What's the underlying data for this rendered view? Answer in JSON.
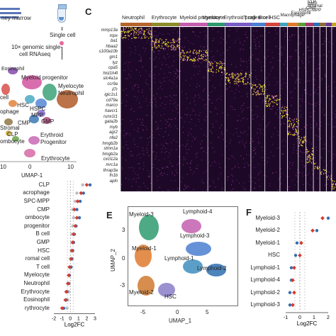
{
  "panelA": {
    "text_top": "ney marrow",
    "single_cell": "Single cell",
    "protocol_line1": "10× genomic single-",
    "protocol_line2": "cell RNAseq",
    "cluster_labels": [
      "Eosinophil",
      "Myeloid progenitor",
      "Myelocyte",
      "Neutrophil",
      "HSC",
      "cell",
      "ophage",
      "HSPC",
      "MPP",
      "GMP",
      "CMP",
      "Stromal",
      "CLP",
      "ombocyte",
      "Erythroid",
      "Progenitor",
      "Erythrocyte"
    ],
    "x_ticks": [
      "10",
      "0",
      "10"
    ],
    "x_label": "UMAP-1"
  },
  "panelC": {
    "label": "C",
    "clusters": [
      {
        "name": "Neutrophil",
        "color": "#b5652a"
      },
      {
        "name": "Erythrocyte",
        "color": "#8c8c2a"
      },
      {
        "name": "Myeloid progenitor",
        "color": "#c45fb0"
      },
      {
        "name": "Myelocyte",
        "color": "#2d9a6e"
      },
      {
        "name": "Erythroid progenitor",
        "color": "#7a5cc8"
      },
      {
        "name": "T cell",
        "color": "#4b7fd1"
      },
      {
        "name": "B cell",
        "color": "#d4453f"
      },
      {
        "name": "HSC",
        "color": "#3fa4c0"
      },
      {
        "name": "Macrophage",
        "color": "#e07b2e"
      },
      {
        "name": "Eosinophil",
        "color": "#5c9e3a"
      },
      {
        "name": "HSPC-MPP",
        "color": "#a83a70"
      },
      {
        "name": "CMP",
        "color": "#2f6fb0"
      },
      {
        "name": "Stromal",
        "color": "#8a6d3b"
      },
      {
        "name": "GMP",
        "color": "#6a3a9a"
      },
      {
        "name": "CLP",
        "color": "#c4a42a"
      }
    ],
    "genes": [
      "mmp13a",
      "mpx",
      "ba1",
      "hbaa2",
      "s100a10b",
      "gm1",
      "lyz",
      "cpa5",
      "hist1h4l",
      "slc4a1a",
      "ccr9a",
      "il7r",
      "igic1s1",
      "cd79a",
      "marco",
      "havcr1",
      "runx1t1",
      "gata2b",
      "myb",
      "agr2",
      "nfe2",
      "hmgb2b",
      "stmn1a",
      "hmgb2a",
      "cxcl12a",
      "mrc1a",
      "thrap3a",
      "fn1b",
      "apln"
    ]
  },
  "panelD": {
    "rows": [
      "CLP",
      "acrophage",
      "SPC-MPP",
      "CMP",
      "ombocyte",
      "progenitor",
      "B cell",
      "GMP",
      "HSC",
      "romal cell",
      "T cell",
      "Myelocyte",
      "Neutrophil",
      "Erythrocyte",
      "Eosinophil",
      "rythrocyte"
    ],
    "points": [
      {
        "red": 2.0,
        "blue": 2.4,
        "grey": 1.5
      },
      {
        "red": 1.3,
        "blue": 1.6,
        "grey": 0.8
      },
      {
        "red": 0.9,
        "blue": 1.2,
        "grey": 0.6
      },
      {
        "red": 0.5,
        "blue": 0.8,
        "grey": 0.3
      },
      {
        "red": 0.8,
        "blue": 1.1,
        "grey": 0.4
      },
      {
        "red": 0.6,
        "blue": 0.7,
        "grey": 0.3
      },
      {
        "red": 0.4,
        "blue": 0.5,
        "grey": 0.2
      },
      {
        "red": 0.3,
        "blue": 0.4,
        "grey": 0.2
      },
      {
        "red": 0.2,
        "blue": 0.3,
        "grey": 0.1
      },
      {
        "red": 0.1,
        "blue": 0.2,
        "grey": 0.0
      },
      {
        "red": -0.1,
        "blue": 0.1,
        "grey": 0.0
      },
      {
        "red": -0.2,
        "blue": -0.1,
        "grey": -0.1
      },
      {
        "red": -0.3,
        "blue": -0.2,
        "grey": -0.1
      },
      {
        "red": -0.5,
        "blue": -0.4,
        "grey": -0.2
      },
      {
        "red": -0.6,
        "blue": -0.5,
        "grey": -0.3
      },
      {
        "red": -1.0,
        "blue": -0.8,
        "grey": -0.4
      }
    ],
    "x_ticks": [
      "-2",
      "-1",
      "0",
      "1",
      "2",
      "3"
    ],
    "x_label": "Log2FC",
    "xlim": [
      -2,
      3
    ]
  },
  "panelE": {
    "label": "E",
    "cluster_labels": [
      "Myeloid-3",
      "Lymphoid-4",
      "Lymphoid-3",
      "Myeloid-1",
      "Lymphoid-1",
      "Lymphoid-2",
      "Myeloid-2",
      "HSC"
    ],
    "y_ticks": [
      "3",
      "0",
      "-3"
    ],
    "x_ticks": [
      "-5",
      "0",
      "5"
    ],
    "x_label": "UMAP_1",
    "y_label": "UMAP_2"
  },
  "panelF": {
    "label": "F",
    "rows": [
      "Myeloid-3",
      "Myeloid-2",
      "Myeloid-1",
      "HSC",
      "Lymphoid-1",
      "Lymphoid-4",
      "Lymphoid-2",
      "Lymphoid-3"
    ],
    "points": [
      {
        "red": 1.6,
        "blue": 2.0
      },
      {
        "red": 0.9,
        "blue": 1.2
      },
      {
        "red": 0.1,
        "blue": -0.2
      },
      {
        "red": 0.0,
        "blue": -0.3
      },
      {
        "red": -0.4,
        "blue": -0.6
      },
      {
        "red": -0.5,
        "blue": -0.6
      },
      {
        "red": -0.4,
        "blue": -0.7
      },
      {
        "red": -0.5,
        "blue": -0.7
      }
    ],
    "x_ticks": [
      "-1",
      "0",
      "1",
      "2"
    ],
    "x_label": "Log2FC",
    "xlim": [
      -1,
      2
    ]
  }
}
